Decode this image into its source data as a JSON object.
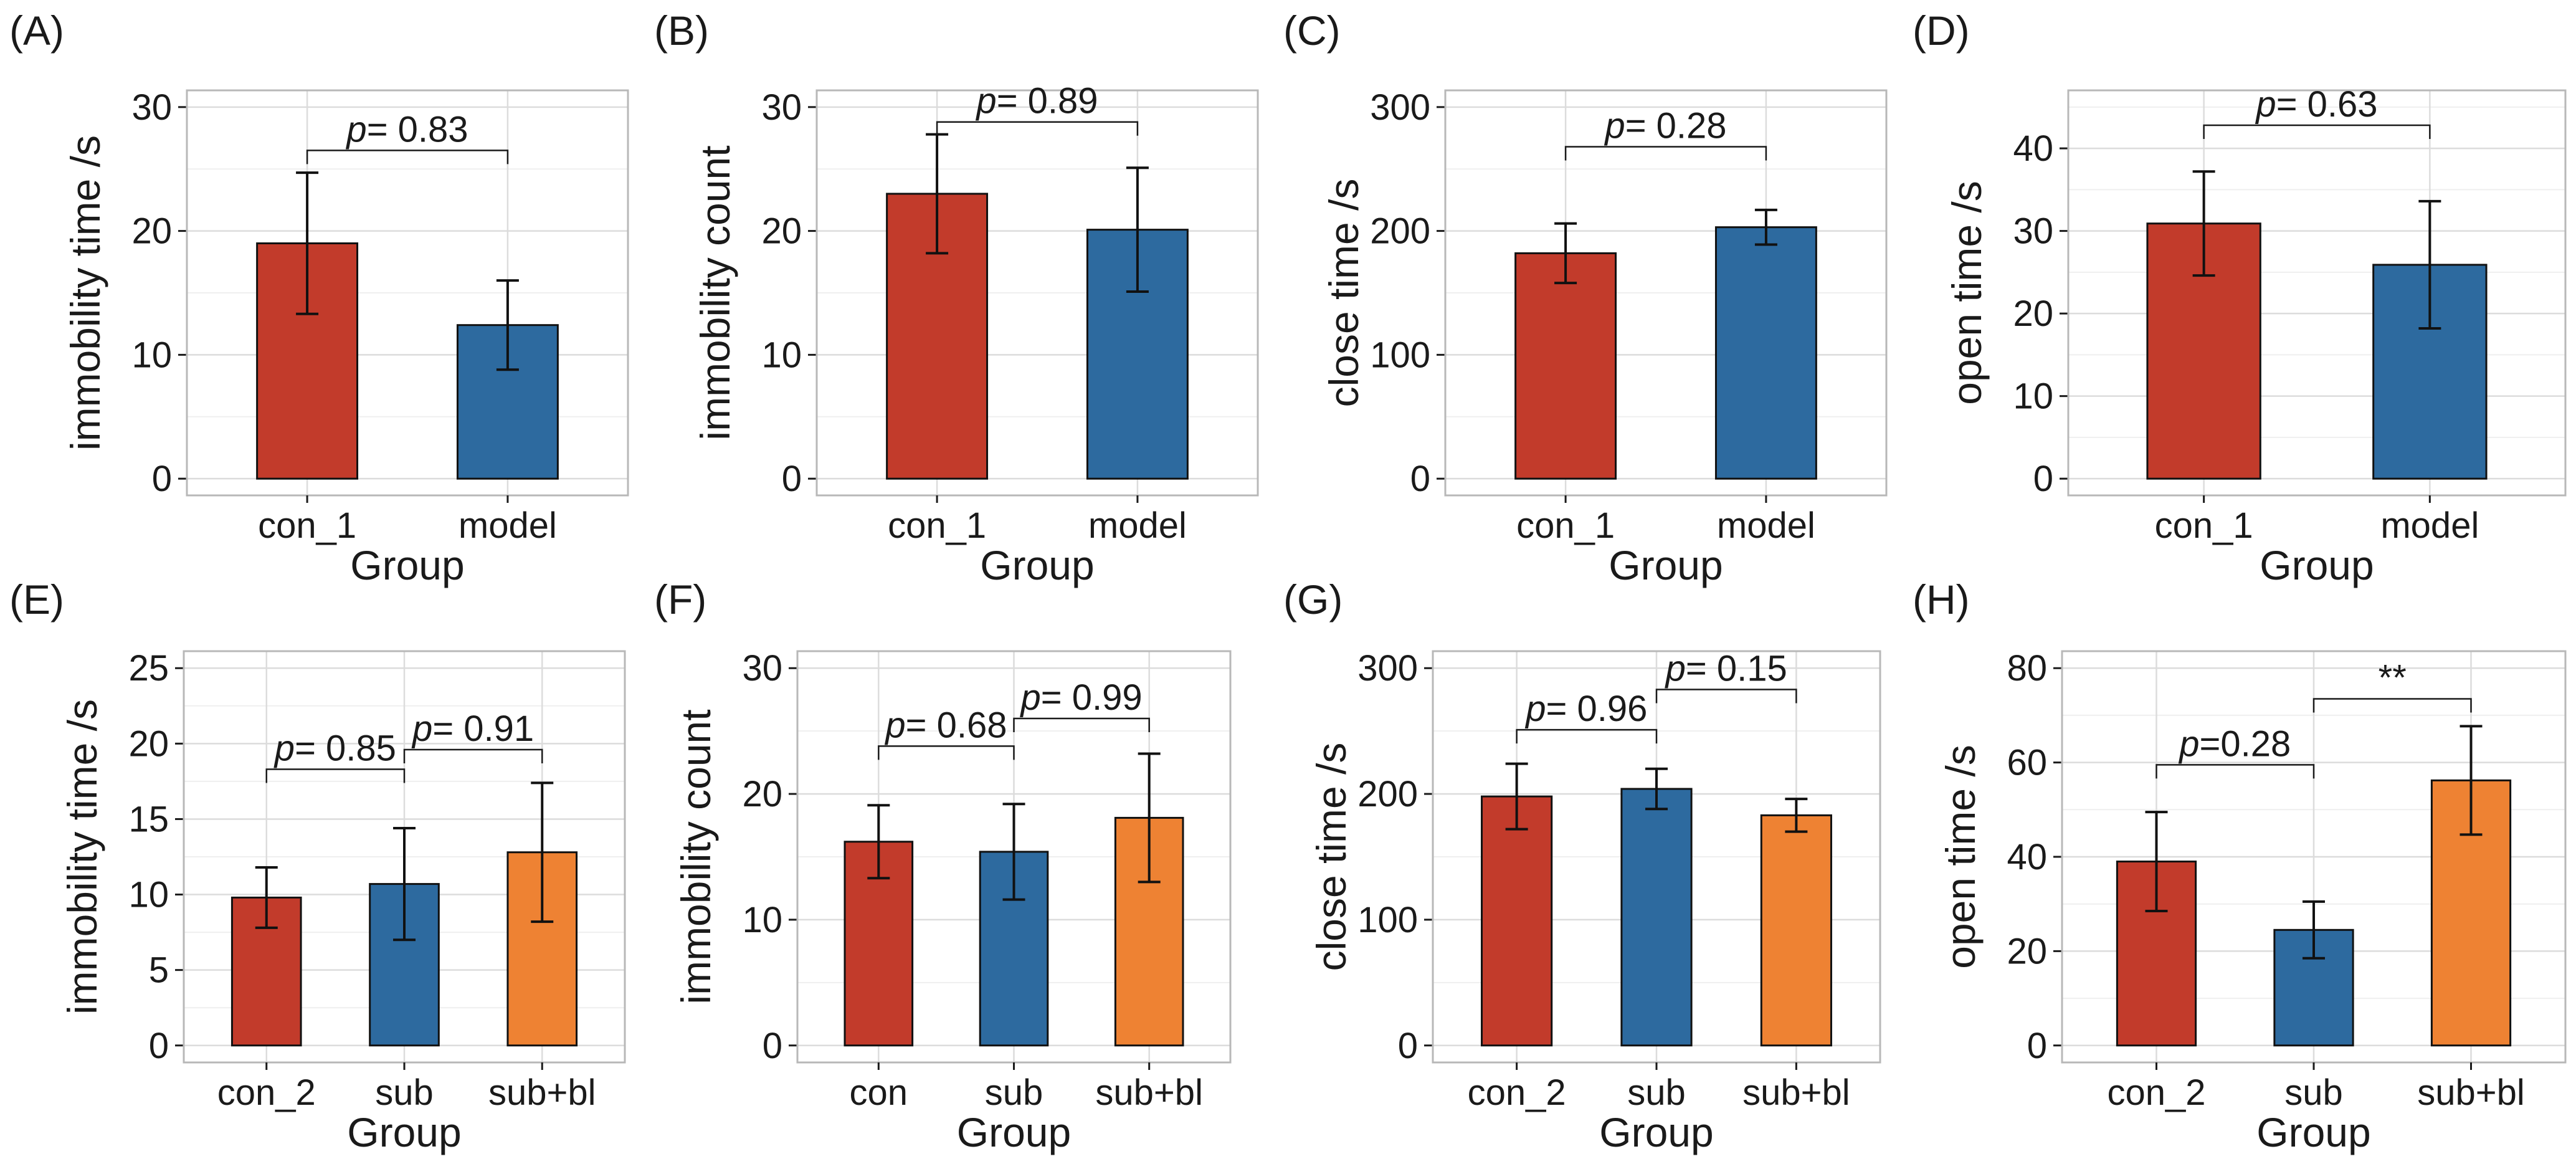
{
  "figure": {
    "colors": {
      "red": "#C23B2B",
      "blue": "#2D6A9F",
      "orange": "#EE8233",
      "grid_major": "#dcdcdc",
      "grid_minor": "#efefef",
      "frame": "#b8b8b8",
      "ink": "#1a1a1a"
    }
  },
  "chart_data": [
    {
      "type": "bar",
      "label": "(A)",
      "categories": [
        "con_1",
        "model"
      ],
      "values": [
        19,
        12.4
      ],
      "errors": [
        5.7,
        3.6
      ],
      "colors": [
        "red",
        "blue"
      ],
      "ylabel": "immobility time /s",
      "xlabel": "Group",
      "ylim": [
        0,
        30
      ],
      "yticks": [
        0,
        10,
        20,
        30
      ],
      "comparisons": [
        {
          "from": 0,
          "to": 1,
          "y": 26.5,
          "text": "= 0.83",
          "p_prefix": "p"
        }
      ]
    },
    {
      "type": "bar",
      "label": "(B)",
      "categories": [
        "con_1",
        "model"
      ],
      "values": [
        23,
        20.1
      ],
      "errors": [
        4.8,
        5.0
      ],
      "colors": [
        "red",
        "blue"
      ],
      "ylabel": "immobility count",
      "xlabel": "Group",
      "ylim": [
        0,
        30
      ],
      "yticks": [
        0,
        10,
        20,
        30
      ],
      "comparisons": [
        {
          "from": 0,
          "to": 1,
          "y": 28.8,
          "text": "= 0.89",
          "p_prefix": "p"
        }
      ]
    },
    {
      "type": "bar",
      "label": "(C)",
      "categories": [
        "con_1",
        "model"
      ],
      "values": [
        182,
        203
      ],
      "errors": [
        24,
        14
      ],
      "colors": [
        "red",
        "blue"
      ],
      "ylabel": "close time /s",
      "xlabel": "Group",
      "ylim": [
        0,
        300
      ],
      "yticks": [
        0,
        100,
        200,
        300
      ],
      "comparisons": [
        {
          "from": 0,
          "to": 1,
          "y": 268,
          "text": "= 0.28",
          "p_prefix": "p"
        }
      ]
    },
    {
      "type": "bar",
      "label": "(D)",
      "categories": [
        "con_1",
        "model"
      ],
      "values": [
        30.9,
        25.9
      ],
      "errors": [
        6.3,
        7.7
      ],
      "colors": [
        "red",
        "blue"
      ],
      "ylabel": "open time /s",
      "xlabel": "Group",
      "ylim": [
        0,
        45
      ],
      "yticks": [
        0,
        10,
        20,
        30,
        40
      ],
      "comparisons": [
        {
          "from": 0,
          "to": 1,
          "y": 42.8,
          "text": "= 0.63",
          "p_prefix": "p"
        }
      ]
    },
    {
      "type": "bar",
      "label": "(E)",
      "categories": [
        "con_2",
        "sub",
        "sub+bl"
      ],
      "values": [
        9.8,
        10.7,
        12.8
      ],
      "errors": [
        2.0,
        3.7,
        4.6
      ],
      "colors": [
        "red",
        "blue",
        "orange"
      ],
      "ylabel": "immobility time /s",
      "xlabel": "Group",
      "ylim": [
        0,
        25
      ],
      "yticks": [
        0,
        5,
        10,
        15,
        20,
        25
      ],
      "comparisons": [
        {
          "from": 0,
          "to": 1,
          "y": 18.3,
          "text": "= 0.85",
          "p_prefix": "p"
        },
        {
          "from": 1,
          "to": 2,
          "y": 19.6,
          "text": "= 0.91",
          "p_prefix": "p"
        }
      ]
    },
    {
      "type": "bar",
      "label": "(F)",
      "categories": [
        "con",
        "sub",
        "sub+bl"
      ],
      "values": [
        16.2,
        15.4,
        18.1
      ],
      "errors": [
        2.9,
        3.8,
        5.1
      ],
      "colors": [
        "red",
        "blue",
        "orange"
      ],
      "ylabel": "immobility count",
      "xlabel": "Group",
      "ylim": [
        0,
        30
      ],
      "yticks": [
        0,
        10,
        20,
        30
      ],
      "comparisons": [
        {
          "from": 0,
          "to": 1,
          "y": 23.8,
          "text": "= 0.68",
          "p_prefix": "p"
        },
        {
          "from": 1,
          "to": 2,
          "y": 26.0,
          "text": "= 0.99",
          "p_prefix": "p"
        }
      ]
    },
    {
      "type": "bar",
      "label": "(G)",
      "categories": [
        "con_2",
        "sub",
        "sub+bl"
      ],
      "values": [
        198,
        204,
        183
      ],
      "errors": [
        26,
        16,
        13
      ],
      "colors": [
        "red",
        "blue",
        "orange"
      ],
      "ylabel": "close time /s",
      "xlabel": "Group",
      "ylim": [
        0,
        300
      ],
      "yticks": [
        0,
        100,
        200,
        300
      ],
      "comparisons": [
        {
          "from": 0,
          "to": 1,
          "y": 251,
          "text": "= 0.96",
          "p_prefix": "p"
        },
        {
          "from": 1,
          "to": 2,
          "y": 283,
          "text": "= 0.15",
          "p_prefix": "p"
        }
      ]
    },
    {
      "type": "bar",
      "label": "(H)",
      "categories": [
        "con_2",
        "sub",
        "sub+bl"
      ],
      "values": [
        39,
        24.5,
        56.2
      ],
      "errors": [
        10.5,
        6,
        11.5
      ],
      "colors": [
        "red",
        "blue",
        "orange"
      ],
      "ylabel": "open time /s",
      "xlabel": "Group",
      "ylim": [
        0,
        80
      ],
      "yticks": [
        0,
        20,
        40,
        60,
        80
      ],
      "comparisons": [
        {
          "from": 0,
          "to": 1,
          "y": 59.5,
          "text": "=0.28",
          "p_prefix": "p"
        },
        {
          "from": 1,
          "to": 2,
          "y": 73.5,
          "text": "**",
          "p_prefix": ""
        }
      ]
    }
  ]
}
